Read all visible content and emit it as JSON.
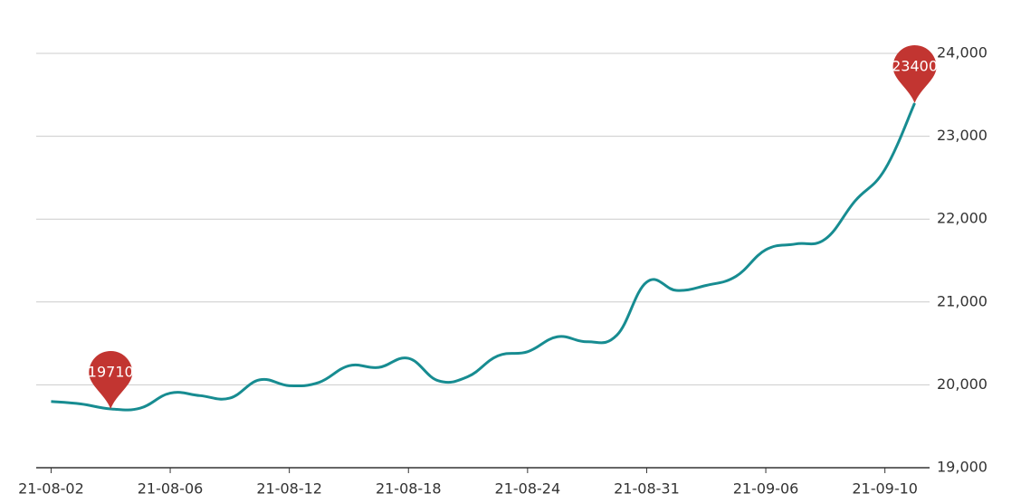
{
  "chart_data": {
    "type": "line",
    "categories": [
      "21-08-02",
      null,
      null,
      null,
      "21-08-06",
      null,
      null,
      null,
      "21-08-12",
      null,
      null,
      null,
      "21-08-18",
      null,
      null,
      null,
      "21-08-24",
      null,
      null,
      null,
      "21-08-31",
      null,
      null,
      null,
      "21-09-06",
      null,
      null,
      null,
      "21-09-10",
      null
    ],
    "values": [
      19800,
      19770,
      19710,
      19720,
      19900,
      19870,
      19840,
      20060,
      19990,
      20030,
      20230,
      20210,
      20320,
      20050,
      20100,
      20350,
      20400,
      20580,
      20520,
      20600,
      21240,
      21140,
      21200,
      21310,
      21630,
      21700,
      21760,
      22220,
      22600,
      23400
    ],
    "color": "#178c91",
    "marker_color": "#c23531",
    "ylim": [
      19000,
      24000
    ],
    "yticks": [
      {
        "value": 19000,
        "label": "19,000"
      },
      {
        "value": 20000,
        "label": "20,000"
      },
      {
        "value": 21000,
        "label": "21,000"
      },
      {
        "value": 22000,
        "label": "22,000"
      },
      {
        "value": 23000,
        "label": "23,000"
      },
      {
        "value": 24000,
        "label": "24,000"
      }
    ],
    "grid": true
  }
}
